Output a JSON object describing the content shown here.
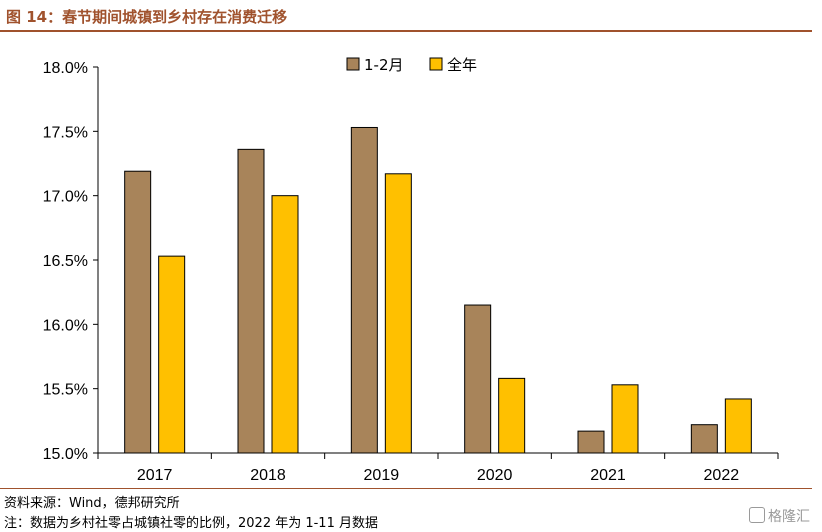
{
  "figure_title": "图 14：春节期间城镇到乡村存在消费迁移",
  "source_note": "资料来源：Wind，德邦研究所",
  "remark_note": "注：数据为乡村社零占城镇社零的比例，2022 年为 1-11 月数据",
  "watermark": "格隆汇",
  "colors": {
    "series1": "#a8845a",
    "series2": "#ffc000",
    "accent": "#a0522d"
  },
  "chart_data": {
    "type": "bar",
    "categories": [
      "2017",
      "2018",
      "2019",
      "2020",
      "2021",
      "2022"
    ],
    "series": [
      {
        "name": "1-2月",
        "values": [
          17.19,
          17.36,
          17.53,
          16.15,
          15.17,
          15.22
        ]
      },
      {
        "name": "全年",
        "values": [
          16.53,
          17.0,
          17.17,
          15.58,
          15.53,
          15.42
        ]
      }
    ],
    "ylim": [
      15.0,
      18.0
    ],
    "yticks": [
      15.0,
      15.5,
      16.0,
      16.5,
      17.0,
      17.5,
      18.0
    ],
    "ytick_labels": [
      "15.0%",
      "15.5%",
      "16.0%",
      "16.5%",
      "17.0%",
      "17.5%",
      "18.0%"
    ],
    "legend_position": "top-center",
    "grid": false
  }
}
